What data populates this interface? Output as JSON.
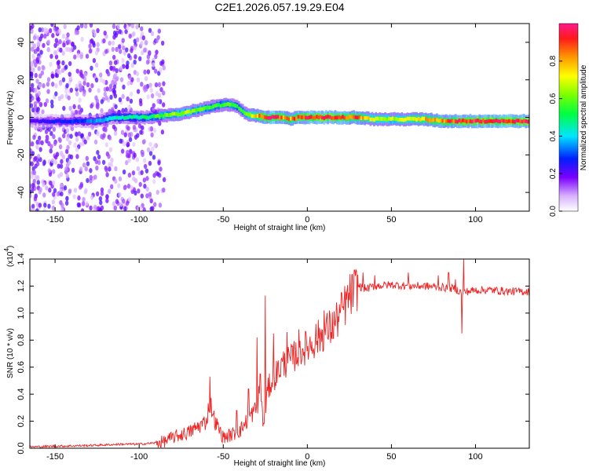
{
  "title": "C2E1.2026.057.19.29.E04",
  "chart_data": [
    {
      "type": "heatmap",
      "xlabel": "Height of straight line (km)",
      "ylabel": "Frequency (Hz)",
      "xlim": [
        -165,
        132
      ],
      "ylim": [
        -50,
        50
      ],
      "xticks": [
        "-150",
        "-100",
        "-50",
        "0",
        "50",
        "100"
      ],
      "xtick_values": [
        -150,
        -100,
        -50,
        0,
        50,
        100
      ],
      "yticks": [
        "-40",
        "-20",
        "0",
        "20",
        "40"
      ],
      "ytick_values": [
        -40,
        -20,
        0,
        20,
        40
      ],
      "colorbar": {
        "label": "Normalized spectral amplitude",
        "ticks": [
          "0.0",
          "0.2",
          "0.4",
          "0.6",
          "0.8"
        ],
        "tick_values": [
          0.0,
          0.2,
          0.4,
          0.6,
          0.8
        ],
        "range": [
          0,
          1
        ]
      },
      "ridge": {
        "x": [
          -165,
          -150,
          -135,
          -125,
          -115,
          -105,
          -95,
          -85,
          -75,
          -65,
          -55,
          -48,
          -42,
          -38,
          -34,
          -30,
          -25,
          -20,
          -15,
          -10,
          -5,
          0,
          10,
          20,
          30,
          40,
          50,
          60,
          70,
          80,
          90,
          100,
          110,
          120,
          132
        ],
        "y": [
          -2,
          -2,
          -2,
          -2,
          0,
          0,
          0,
          1,
          2,
          4,
          6,
          7,
          6,
          3,
          1,
          1,
          0,
          0,
          0,
          -1,
          0,
          0,
          0,
          0,
          0,
          -1,
          -1,
          -1,
          -1,
          -2,
          -2,
          -2,
          -2,
          -2,
          -2
        ],
        "amplitude": [
          0.2,
          0.25,
          0.3,
          0.35,
          0.45,
          0.45,
          0.5,
          0.6,
          0.65,
          0.6,
          0.55,
          0.55,
          0.55,
          0.55,
          0.65,
          0.8,
          0.9,
          0.95,
          0.85,
          0.8,
          0.9,
          0.95,
          0.95,
          0.9,
          0.85,
          0.7,
          0.65,
          0.7,
          0.8,
          0.85,
          0.9,
          0.95,
          0.95,
          0.95,
          0.95
        ]
      }
    },
    {
      "type": "line",
      "ylabel": "SNR (10 * v/v)",
      "xlabel": "Height of straight line (km)",
      "yscale_label": "(x10",
      "yscale_exp": "4",
      "yscale_close": ")",
      "xlim": [
        -165,
        132
      ],
      "ylim": [
        0.0,
        1.4
      ],
      "xticks": [
        "-150",
        "-100",
        "-50",
        "0",
        "50",
        "100"
      ],
      "xtick_values": [
        -150,
        -100,
        -50,
        0,
        50,
        100
      ],
      "yticks": [
        "0.0",
        "0.2",
        "0.4",
        "0.6",
        "0.8",
        "1.0",
        "1.2",
        "1.4"
      ],
      "ytick_values": [
        0.0,
        0.2,
        0.4,
        0.6,
        0.8,
        1.0,
        1.2,
        1.4
      ],
      "series": [
        {
          "name": "SNR",
          "color": "#ee2222",
          "x": [
            -165,
            -150,
            -130,
            -110,
            -100,
            -90,
            -85,
            -80,
            -75,
            -70,
            -65,
            -60,
            -58,
            -55,
            -50,
            -45,
            -40,
            -35,
            -30,
            -28,
            -26,
            -24,
            -22,
            -20,
            -15,
            -10,
            -5,
            0,
            5,
            10,
            15,
            20,
            25,
            30,
            35,
            40,
            50,
            60,
            70,
            80,
            88,
            92,
            95,
            100,
            110,
            120,
            132
          ],
          "values": [
            0.01,
            0.015,
            0.02,
            0.03,
            0.03,
            0.04,
            0.05,
            0.08,
            0.1,
            0.12,
            0.16,
            0.2,
            0.35,
            0.2,
            0.08,
            0.1,
            0.13,
            0.22,
            0.3,
            0.45,
            0.15,
            0.4,
            0.48,
            0.52,
            0.62,
            0.65,
            0.72,
            0.75,
            0.8,
            0.86,
            0.9,
            1.0,
            1.12,
            1.2,
            1.18,
            1.2,
            1.21,
            1.2,
            1.2,
            1.19,
            1.18,
            1.15,
            1.16,
            1.17,
            1.17,
            1.16,
            1.16
          ]
        }
      ],
      "spikes": {
        "x": [
          -58,
          -42,
          -35,
          -30,
          -28,
          -25,
          -20,
          -12,
          -5,
          5,
          10,
          22,
          33,
          40,
          60,
          78,
          84,
          88,
          92,
          93
        ],
        "values": [
          0.53,
          0.28,
          0.44,
          0.82,
          0.55,
          1.13,
          0.85,
          0.86,
          0.88,
          0.92,
          1.02,
          1.1,
          1.3,
          1.28,
          1.3,
          1.28,
          1.3,
          1.25,
          0.85,
          1.4
        ]
      }
    }
  ]
}
